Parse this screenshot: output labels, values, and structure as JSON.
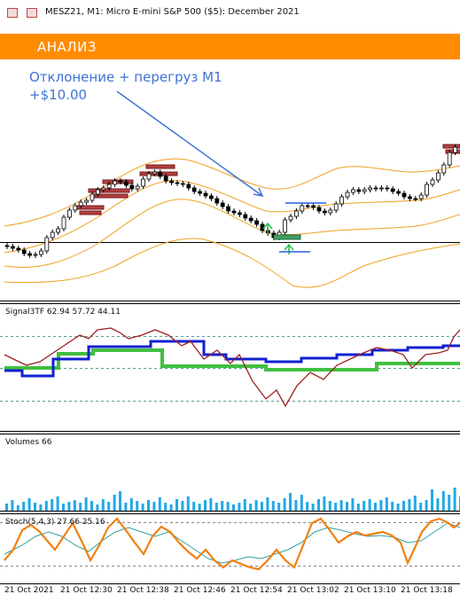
{
  "window": {
    "title": "MESZ21, M1:  Micro E-mini S&P 500 ($5): December 2021",
    "icons": [
      "chart-window-icon",
      "chart-properties-icon"
    ]
  },
  "banner": {
    "label": "АНАЛИЗ",
    "color": "#ff8c00"
  },
  "annotation": {
    "line1": "Отклонение + перегруз М1",
    "line2": "+$10.00",
    "color": "#3e72d6"
  },
  "indicators": {
    "signal": "Signal3TF 62.94 57.72 44.11",
    "volumes": "Volumes 66",
    "stoch": "Stoch(5,4,3) 27.66 25.16"
  },
  "time_axis": [
    "21 Oct 2021",
    "21 Oct 12:30",
    "21 Oct 12:38",
    "21 Oct 12:46",
    "21 Oct 12:54",
    "21 Oct 13:02",
    "21 Oct 13:10",
    "21 Oct 13:18"
  ],
  "colors": {
    "bull_candle": "#ffffff",
    "bear_candle": "#000000",
    "bands": "#f0a020",
    "signal_blue": "#1020d0",
    "signal_green": "#40c040",
    "signal_red": "#a02020",
    "volume_bars": "#20a8e8",
    "stoch_main": "#f08010",
    "stoch_signal": "#30a0a0",
    "arrow_up": "#20c040",
    "level_blue": "#2060e0"
  }
}
